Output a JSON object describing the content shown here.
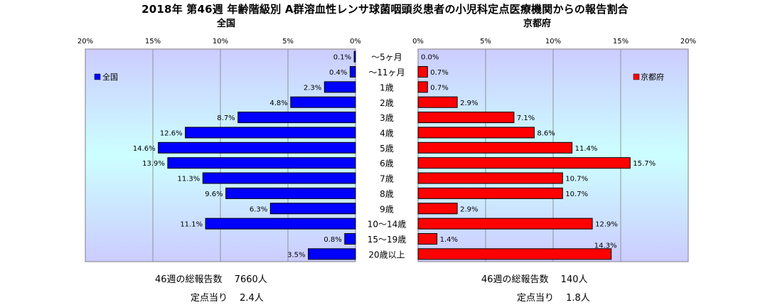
{
  "title": "2018年 第46週 年齢階級別 A群溶血性レンサ球菌咽頭炎患者の小児科定点医療機関からの報告割合",
  "colors": {
    "left_bar": "#0000ff",
    "right_bar": "#ff0000",
    "plot_bg_top": "#ccccff",
    "plot_bg_mid": "#ccffff",
    "plot_bg_bottom": "#ccccff"
  },
  "chart_data": [
    {
      "type": "bar",
      "orientation": "horizontal",
      "direction": "leftward",
      "title": "全国",
      "categories": [
        "～5ヶ月",
        "～11ヶ月",
        "1歳",
        "2歳",
        "3歳",
        "4歳",
        "5歳",
        "6歳",
        "7歳",
        "8歳",
        "9歳",
        "10～14歳",
        "15～19歳",
        "20歳以上"
      ],
      "series": [
        {
          "name": "全国",
          "values": [
            0.1,
            0.4,
            2.3,
            4.8,
            8.7,
            12.6,
            14.6,
            13.9,
            11.3,
            9.6,
            6.3,
            11.1,
            0.8,
            3.5
          ],
          "labels": [
            "0.1%",
            "0.4%",
            "2.3%",
            "4.8%",
            "8.7%",
            "12.6%",
            "14.6%",
            "13.9%",
            "11.3%",
            "9.6%",
            "6.3%",
            "11.1%",
            "0.8%",
            "3.5%"
          ]
        }
      ],
      "xlim": [
        0,
        20
      ],
      "xticks": [
        "20%",
        "15%",
        "10%",
        "5%",
        "0%"
      ],
      "grid": true,
      "legend": "top-left"
    },
    {
      "type": "bar",
      "orientation": "horizontal",
      "direction": "rightward",
      "title": "京都府",
      "categories": [
        "～5ヶ月",
        "～11ヶ月",
        "1歳",
        "2歳",
        "3歳",
        "4歳",
        "5歳",
        "6歳",
        "7歳",
        "8歳",
        "9歳",
        "10～14歳",
        "15～19歳",
        "20歳以上"
      ],
      "series": [
        {
          "name": "京都府",
          "values": [
            0.0,
            0.7,
            0.7,
            2.9,
            7.1,
            8.6,
            11.4,
            15.7,
            10.7,
            10.7,
            2.9,
            12.9,
            1.4,
            14.3
          ],
          "labels": [
            "0.0%",
            "0.7%",
            "0.7%",
            "2.9%",
            "7.1%",
            "8.6%",
            "11.4%",
            "15.7%",
            "10.7%",
            "10.7%",
            "2.9%",
            "12.9%",
            "1.4%",
            "14.3%"
          ]
        }
      ],
      "xlim": [
        0,
        20
      ],
      "xticks": [
        "0%",
        "5%",
        "10%",
        "15%",
        "20%"
      ],
      "grid": true,
      "legend": "top-right"
    }
  ],
  "footer": {
    "left_total": "46週の総報告数　 7660人",
    "left_per": "定点当り　 2.4人",
    "right_total": "46週の総報告数　 140人",
    "right_per": "定点当り　 1.8人"
  }
}
